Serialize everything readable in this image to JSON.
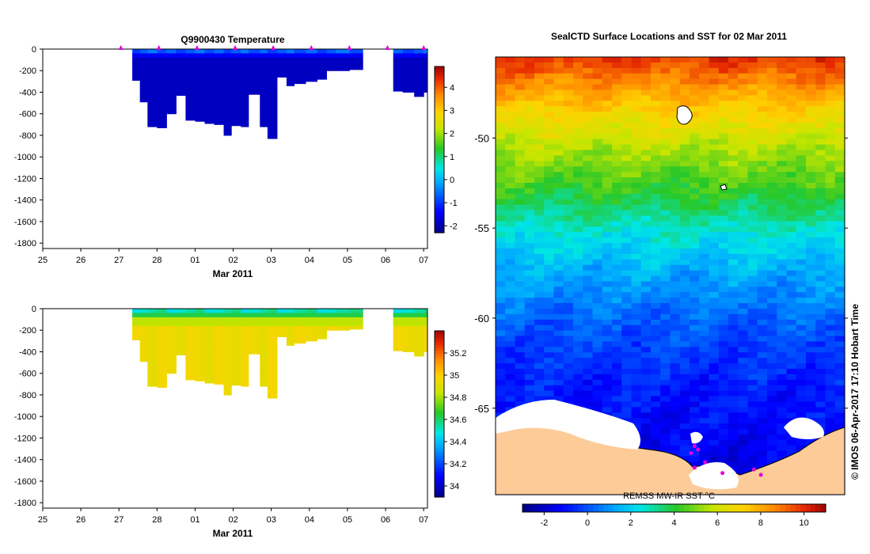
{
  "chart_data": [
    {
      "id": "temperature",
      "type": "heatmap",
      "title": "Q9900430  Temperature",
      "xlabel": "Mar 2011",
      "ylabel": "",
      "x_ticks": [
        "25",
        "26",
        "27",
        "28",
        "01",
        "02",
        "03",
        "04",
        "05",
        "06",
        "07"
      ],
      "xlim": [
        0,
        10.1
      ],
      "y_ticks": [
        "0",
        "-200",
        "-400",
        "-600",
        "-800",
        "-1000",
        "-1200",
        "-1400",
        "-1600",
        "-1800"
      ],
      "ylim": [
        -1850,
        0
      ],
      "colorbar": {
        "ticks": [
          "-2",
          "-1",
          "0",
          "1",
          "2",
          "3",
          "4"
        ],
        "range": [
          -2.3,
          4.9
        ]
      },
      "profile_markers": [
        2.05,
        3.05,
        4.05,
        5.05,
        6.05,
        7.05,
        8.05,
        9.05,
        10.0
      ],
      "profiles": [
        {
          "x0": 2.35,
          "x1": 2.55,
          "depth": 290
        },
        {
          "x0": 2.55,
          "x1": 2.75,
          "depth": 490
        },
        {
          "x0": 2.75,
          "x1": 3.0,
          "depth": 720
        },
        {
          "x0": 3.0,
          "x1": 3.25,
          "depth": 730
        },
        {
          "x0": 3.25,
          "x1": 3.5,
          "depth": 600
        },
        {
          "x0": 3.5,
          "x1": 3.75,
          "depth": 430
        },
        {
          "x0": 3.75,
          "x1": 4.0,
          "depth": 660
        },
        {
          "x0": 4.0,
          "x1": 4.25,
          "depth": 670
        },
        {
          "x0": 4.25,
          "x1": 4.5,
          "depth": 690
        },
        {
          "x0": 4.5,
          "x1": 4.75,
          "depth": 700
        },
        {
          "x0": 4.75,
          "x1": 4.95,
          "depth": 800
        },
        {
          "x0": 4.95,
          "x1": 5.2,
          "depth": 710
        },
        {
          "x0": 5.2,
          "x1": 5.4,
          "depth": 720
        },
        {
          "x0": 5.4,
          "x1": 5.7,
          "depth": 420
        },
        {
          "x0": 5.7,
          "x1": 5.9,
          "depth": 720
        },
        {
          "x0": 5.9,
          "x1": 6.15,
          "depth": 830
        },
        {
          "x0": 6.15,
          "x1": 6.4,
          "depth": 260
        },
        {
          "x0": 6.4,
          "x1": 6.6,
          "depth": 340
        },
        {
          "x0": 6.6,
          "x1": 6.9,
          "depth": 320
        },
        {
          "x0": 6.9,
          "x1": 7.2,
          "depth": 300
        },
        {
          "x0": 7.2,
          "x1": 7.45,
          "depth": 280
        },
        {
          "x0": 7.45,
          "x1": 7.7,
          "depth": 200
        },
        {
          "x0": 7.7,
          "x1": 8.05,
          "depth": 200
        },
        {
          "x0": 8.05,
          "x1": 8.4,
          "depth": 190
        },
        {
          "x0": 9.2,
          "x1": 9.45,
          "depth": 390
        },
        {
          "x0": 9.45,
          "x1": 9.75,
          "depth": 400
        },
        {
          "x0": 9.75,
          "x1": 10.0,
          "depth": 440
        },
        {
          "x0": 10.0,
          "x1": 10.1,
          "depth": 400
        }
      ],
      "surface_value": -1.0,
      "deep_value": -1.9
    },
    {
      "id": "salinity",
      "type": "heatmap",
      "title": "",
      "xlabel": "Mar 2011",
      "ylabel": "",
      "x_ticks": [
        "25",
        "26",
        "27",
        "28",
        "01",
        "02",
        "03",
        "04",
        "05",
        "06",
        "07"
      ],
      "xlim": [
        0,
        10.1
      ],
      "y_ticks": [
        "0",
        "-200",
        "-400",
        "-600",
        "-800",
        "-1000",
        "-1200",
        "-1400",
        "-1600",
        "-1800"
      ],
      "ylim": [
        -1850,
        0
      ],
      "colorbar": {
        "ticks": [
          "34",
          "34.2",
          "34.4",
          "34.6",
          "34.8",
          "35",
          "35.2"
        ],
        "range": [
          33.9,
          35.4
        ]
      },
      "surface_value": 34.5,
      "deep_value": 34.95
    },
    {
      "id": "sst_map",
      "type": "heatmap",
      "title": "SealCTD Surface Locations and SST for 02 Mar 2011",
      "xlabel": "",
      "ylabel": "",
      "lat_ticks": [
        "-50",
        "-55",
        "-60",
        "-65"
      ],
      "ylim": [
        -69.8,
        -45.5
      ],
      "colorbar": {
        "label": "REMSS MW-IR SST °C",
        "ticks": [
          "-2",
          "0",
          "2",
          "4",
          "6",
          "8",
          "10"
        ],
        "range": [
          -3,
          11
        ]
      },
      "sst_stops": [
        {
          "lat": -45.5,
          "value": 9.8
        },
        {
          "lat": -48,
          "value": 7.5
        },
        {
          "lat": -50.5,
          "value": 5.5
        },
        {
          "lat": -53,
          "value": 4.0
        },
        {
          "lat": -55.5,
          "value": 2.3
        },
        {
          "lat": -58,
          "value": 1.0
        },
        {
          "lat": -61,
          "value": -0.2
        },
        {
          "lat": -64,
          "value": -1.0
        },
        {
          "lat": -69.8,
          "value": -1.8
        }
      ],
      "seal_locations": [
        {
          "lat": -67.1,
          "lon_frac": 0.57
        },
        {
          "lat": -67.3,
          "lon_frac": 0.58
        },
        {
          "lat": -67.5,
          "lon_frac": 0.56
        },
        {
          "lat": -68.0,
          "lon_frac": 0.6
        },
        {
          "lat": -68.3,
          "lon_frac": 0.57
        },
        {
          "lat": -68.6,
          "lon_frac": 0.65
        },
        {
          "lat": -68.4,
          "lon_frac": 0.74
        },
        {
          "lat": -68.7,
          "lon_frac": 0.76
        }
      ]
    }
  ],
  "credit": "© IMOS 06-Apr-2017 17:10 Hobart Time",
  "colors": {
    "land": "#fccb98",
    "ice": "#ffffff",
    "marker": "#e000e0"
  }
}
